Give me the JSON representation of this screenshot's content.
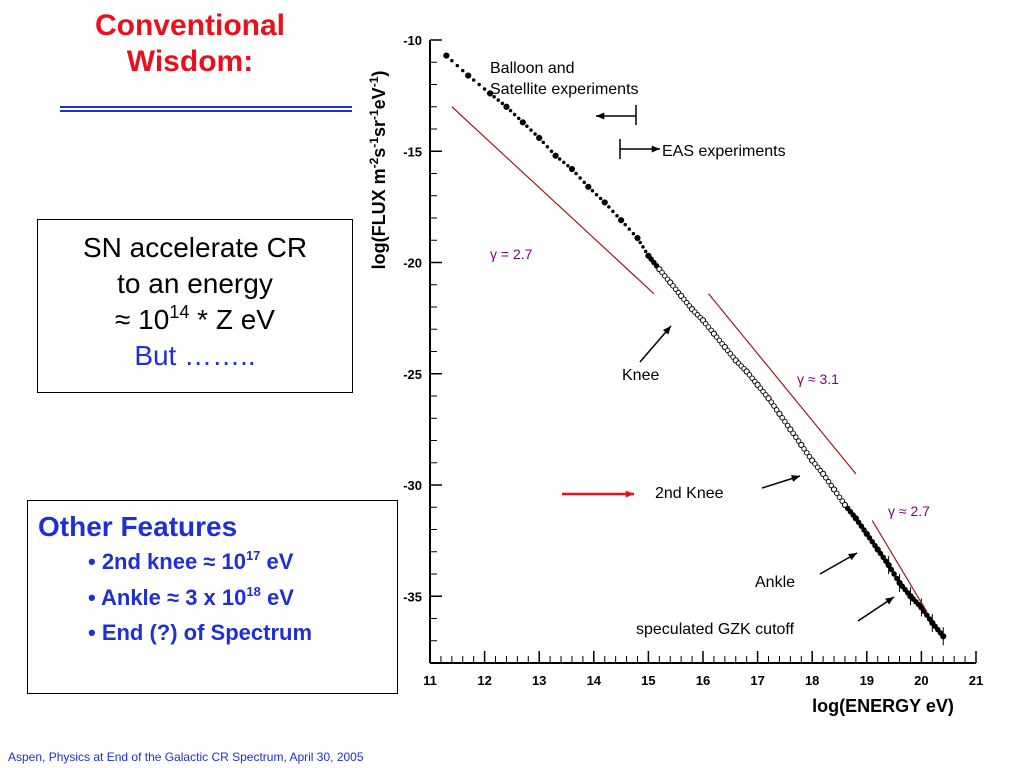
{
  "slide": {
    "title_line1": "Conventional",
    "title_line2": "Wisdom:",
    "box1": {
      "line1": "SN accelerate CR",
      "line2": "to an energy",
      "line3_prefix": "≈ 10",
      "line3_exp": "14",
      "line3_suffix": " * Z eV",
      "line4": "But …….."
    },
    "box2": {
      "heading": "Other Features",
      "bullet1_prefix": "• 2nd knee ≈ 10",
      "bullet1_exp": "17",
      "bullet1_suffix": " eV",
      "bullet2_prefix": "• Ankle ≈ 3 x 10",
      "bullet2_exp": "18",
      "bullet2_suffix": " eV",
      "bullet3": "• End (?) of Spectrum"
    },
    "footer": "Aspen, Physics at End of the Galactic CR Spectrum, April 30, 2005",
    "colors": {
      "red": "#e8101a",
      "blue": "#1f2fd6",
      "purple": "#800080",
      "fitline": "#9b1c1c"
    }
  },
  "chart_data": {
    "type": "scatter",
    "xlabel": "log(ENERGY  eV)",
    "ylabel_main": "log(FLUX   m",
    "ylabel_sup1": "-2",
    "ylabel_mid1": "s",
    "ylabel_sup2": "-1",
    "ylabel_mid2": "sr",
    "ylabel_sup3": "-1",
    "ylabel_mid3": "eV",
    "ylabel_sup4": "-1",
    "ylabel_end": ")",
    "xlim": [
      11,
      21
    ],
    "ylim": [
      -38,
      -10
    ],
    "x_ticks": [
      "11",
      "12",
      "13",
      "14",
      "15",
      "16",
      "17",
      "18",
      "19",
      "20",
      "21"
    ],
    "y_ticks": [
      "-10",
      "-15",
      "-20",
      "-25",
      "-30",
      "-35"
    ],
    "series": [
      {
        "x": [
          11.3,
          11.7,
          12.1,
          12.4,
          12.7,
          13.0,
          13.3,
          13.6,
          13.9,
          14.2,
          14.5,
          14.8,
          15.0,
          15.2,
          15.4,
          15.6,
          15.8,
          16.0,
          16.2,
          16.4,
          16.6,
          16.8,
          17.0,
          17.2,
          17.4,
          17.6,
          17.8,
          18.0,
          18.2,
          18.4,
          18.6,
          18.8,
          19.0,
          19.2,
          19.4,
          19.6,
          19.8,
          20.0,
          20.2,
          20.4
        ],
        "y": [
          -10.7,
          -11.6,
          -12.4,
          -13.0,
          -13.7,
          -14.4,
          -15.2,
          -15.8,
          -16.6,
          -17.3,
          -18.1,
          -18.9,
          -19.7,
          -20.3,
          -20.9,
          -21.5,
          -22.1,
          -22.6,
          -23.2,
          -23.8,
          -24.4,
          -24.9,
          -25.5,
          -26.1,
          -26.8,
          -27.5,
          -28.2,
          -28.9,
          -29.5,
          -30.2,
          -30.9,
          -31.5,
          -32.2,
          -32.9,
          -33.6,
          -34.4,
          -35.0,
          -35.5,
          -36.2,
          -36.8
        ]
      }
    ],
    "annotations": {
      "balloon_line1": "Balloon and",
      "balloon_line2": "Satellite experiments",
      "eas": "EAS experiments",
      "knee": "Knee",
      "second_knee": "2nd Knee",
      "ankle": "Ankle",
      "gzk": "speculated GZK cutoff",
      "gamma1": "γ = 2.7",
      "gamma2": "γ  ≈ 3.1",
      "gamma3": "γ ≈ 2.7"
    },
    "grid": false
  }
}
